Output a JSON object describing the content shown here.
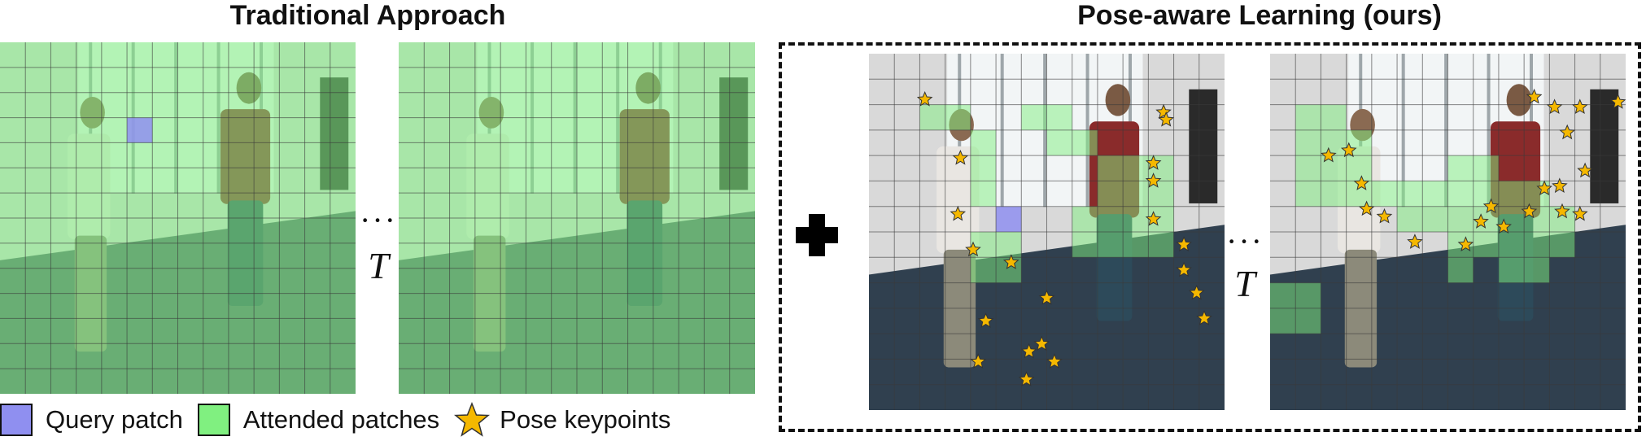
{
  "titles": {
    "traditional": "Traditional Approach",
    "ours": "Pose-aware Learning (ours)"
  },
  "separators": {
    "ellipsis": "···",
    "time_symbol": "T"
  },
  "legend": {
    "query_label": "Query patch",
    "attended_label": "Attended patches",
    "keypoint_label": "Pose keypoints"
  },
  "colors": {
    "query": "#8f8ff0",
    "attended": "#80f080",
    "keypoint_fill": "#f5b800",
    "keypoint_stroke": "#333333",
    "grid": "#3a3a3a"
  },
  "frames": [
    {
      "id": "traditional-frame-1",
      "all_attended": true,
      "query": [
        5,
        3
      ],
      "attended": [],
      "keypoints": []
    },
    {
      "id": "traditional-frame-T",
      "all_attended": true,
      "query": null,
      "attended": [],
      "keypoints": []
    },
    {
      "id": "ours-frame-1",
      "all_attended": false,
      "query": [
        5,
        6
      ],
      "attended": [
        [
          2,
          2
        ],
        [
          3,
          2
        ],
        [
          4,
          3
        ],
        [
          4,
          4
        ],
        [
          4,
          5
        ],
        [
          4,
          7
        ],
        [
          4,
          8
        ],
        [
          5,
          7
        ],
        [
          5,
          8
        ],
        [
          6,
          2
        ],
        [
          7,
          2
        ],
        [
          7,
          3
        ],
        [
          8,
          3
        ],
        [
          8,
          6
        ],
        [
          8,
          7
        ],
        [
          9,
          4
        ],
        [
          9,
          5
        ],
        [
          9,
          6
        ],
        [
          9,
          7
        ],
        [
          10,
          4
        ],
        [
          10,
          5
        ],
        [
          10,
          6
        ],
        [
          10,
          7
        ],
        [
          11,
          4
        ],
        [
          11,
          5
        ],
        [
          11,
          6
        ],
        [
          11,
          7
        ]
      ],
      "keypoints": [
        [
          2.2,
          1.8
        ],
        [
          3.6,
          4.1
        ],
        [
          3.5,
          6.3
        ],
        [
          4.1,
          7.7
        ],
        [
          5.6,
          8.2
        ],
        [
          4.3,
          12.1
        ],
        [
          6.3,
          11.7
        ],
        [
          7.0,
          9.6
        ],
        [
          4.6,
          10.5
        ],
        [
          6.2,
          12.8
        ],
        [
          6.8,
          11.4
        ],
        [
          7.3,
          12.1
        ],
        [
          11.6,
          2.3
        ],
        [
          11.7,
          2.6
        ],
        [
          11.2,
          4.3
        ],
        [
          11.2,
          5.0
        ],
        [
          11.2,
          6.5
        ],
        [
          12.4,
          7.5
        ],
        [
          12.4,
          8.5
        ],
        [
          12.9,
          9.4
        ],
        [
          13.2,
          10.4
        ]
      ]
    },
    {
      "id": "ours-frame-T",
      "all_attended": false,
      "query": null,
      "attended": [
        [
          1,
          2
        ],
        [
          1,
          3
        ],
        [
          1,
          4
        ],
        [
          1,
          5
        ],
        [
          2,
          2
        ],
        [
          2,
          3
        ],
        [
          2,
          4
        ],
        [
          2,
          5
        ],
        [
          3,
          3
        ],
        [
          3,
          4
        ],
        [
          3,
          5
        ],
        [
          4,
          5
        ],
        [
          5,
          5
        ],
        [
          5,
          6
        ],
        [
          6,
          5
        ],
        [
          6,
          6
        ],
        [
          7,
          4
        ],
        [
          7,
          5
        ],
        [
          7,
          6
        ],
        [
          7,
          7
        ],
        [
          7,
          8
        ],
        [
          8,
          4
        ],
        [
          8,
          5
        ],
        [
          8,
          6
        ],
        [
          8,
          7
        ],
        [
          9,
          5
        ],
        [
          9,
          6
        ],
        [
          9,
          7
        ],
        [
          9,
          8
        ],
        [
          10,
          5
        ],
        [
          10,
          6
        ],
        [
          10,
          7
        ],
        [
          10,
          8
        ],
        [
          11,
          6
        ],
        [
          11,
          7
        ],
        [
          0,
          9
        ],
        [
          0,
          10
        ],
        [
          1,
          9
        ],
        [
          1,
          10
        ]
      ],
      "keypoints": [
        [
          2.3,
          4.0
        ],
        [
          3.1,
          3.8
        ],
        [
          3.6,
          5.1
        ],
        [
          3.8,
          6.1
        ],
        [
          4.5,
          6.4
        ],
        [
          5.7,
          7.4
        ],
        [
          7.7,
          7.5
        ],
        [
          8.3,
          6.6
        ],
        [
          8.7,
          6.0
        ],
        [
          9.2,
          6.8
        ],
        [
          10.2,
          6.2
        ],
        [
          10.8,
          5.3
        ],
        [
          11.4,
          5.2
        ],
        [
          11.5,
          6.2
        ],
        [
          12.4,
          4.6
        ],
        [
          12.2,
          6.3
        ],
        [
          10.4,
          1.7
        ],
        [
          11.2,
          2.1
        ],
        [
          11.7,
          3.1
        ],
        [
          12.2,
          2.1
        ],
        [
          13.7,
          1.9
        ]
      ]
    }
  ]
}
